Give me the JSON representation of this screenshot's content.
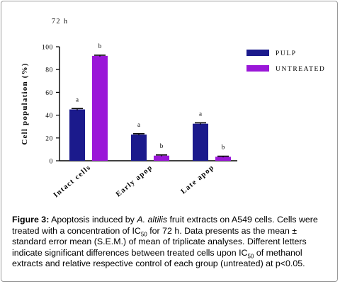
{
  "chart_data": {
    "type": "bar",
    "title": "72 h",
    "ylabel": "Cell population (%)",
    "xlabel": "",
    "ylim": [
      0,
      100
    ],
    "yticks": [
      "0",
      "20",
      "40",
      "60",
      "80",
      "100"
    ],
    "categories": [
      "Intact cells",
      "Early apop",
      "Late apop"
    ],
    "series": [
      {
        "name": "PULP",
        "values": [
          45,
          23,
          32.5
        ],
        "errors": [
          0.8,
          0.7,
          0.8
        ],
        "letters": [
          "a",
          "a",
          "a"
        ]
      },
      {
        "name": "UNTREATED",
        "values": [
          92,
          4.5,
          3.5
        ],
        "errors": [
          0.6,
          0.6,
          0.5
        ],
        "letters": [
          "b",
          "b",
          "b"
        ]
      }
    ],
    "legend_position": "top-right",
    "grid": false
  },
  "colors": {
    "pulp": "#1b1a8c",
    "untreated": "#9a17d8",
    "errorbar": "#000000"
  },
  "caption": {
    "label": "Figure 3:",
    "part1": " Apoptosis induced by ",
    "species": "A. altilis",
    "part2": " fruit extracts on A549 cells. Cells were treated with a concentration of IC",
    "sub1": "50",
    "part3": " for 72 h. Data presents as the mean ± standard error mean (S.E.M.) of mean of triplicate analyses. Different letters indicate significant differences between treated cells upon IC",
    "sub2": "50",
    "part4": " of methanol extracts and relative respective control of each group (untreated) at p<0.05."
  }
}
